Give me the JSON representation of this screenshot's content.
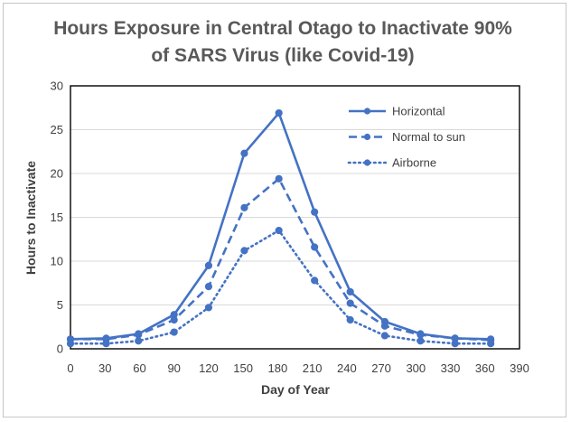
{
  "chart_data": {
    "type": "line",
    "title_lines": [
      "Hours Exposure in Central Otago to Inactivate 90%",
      "of SARS Virus (like Covid-19)"
    ],
    "xlabel": "Day of Year",
    "ylabel": "Hours to Inactivate",
    "xlim": [
      0,
      390
    ],
    "ylim": [
      0,
      30
    ],
    "xticks": [
      0,
      30,
      60,
      90,
      120,
      150,
      180,
      210,
      240,
      270,
      300,
      330,
      360,
      390
    ],
    "yticks": [
      0,
      5,
      10,
      15,
      20,
      25,
      30
    ],
    "x": [
      0,
      31,
      59,
      90,
      120,
      151,
      181,
      212,
      243,
      273,
      304,
      334,
      365
    ],
    "series": [
      {
        "name": "Horizontal",
        "style": "solid",
        "values": [
          1.1,
          1.2,
          1.7,
          3.9,
          9.5,
          22.3,
          26.9,
          15.6,
          6.5,
          3.1,
          1.7,
          1.2,
          1.1
        ]
      },
      {
        "name": "Normal to sun",
        "style": "dashed",
        "values": [
          1.1,
          1.1,
          1.6,
          3.3,
          7.1,
          16.1,
          19.4,
          11.6,
          5.2,
          2.6,
          1.6,
          1.2,
          1.0
        ]
      },
      {
        "name": "Airborne",
        "style": "dotted",
        "values": [
          0.6,
          0.6,
          0.9,
          1.9,
          4.7,
          11.2,
          13.5,
          7.8,
          3.3,
          1.5,
          0.9,
          0.6,
          0.6
        ]
      }
    ],
    "grid": {
      "horizontal": true,
      "vertical": false
    },
    "legend_position": "top-right",
    "color": "#4472c4"
  }
}
